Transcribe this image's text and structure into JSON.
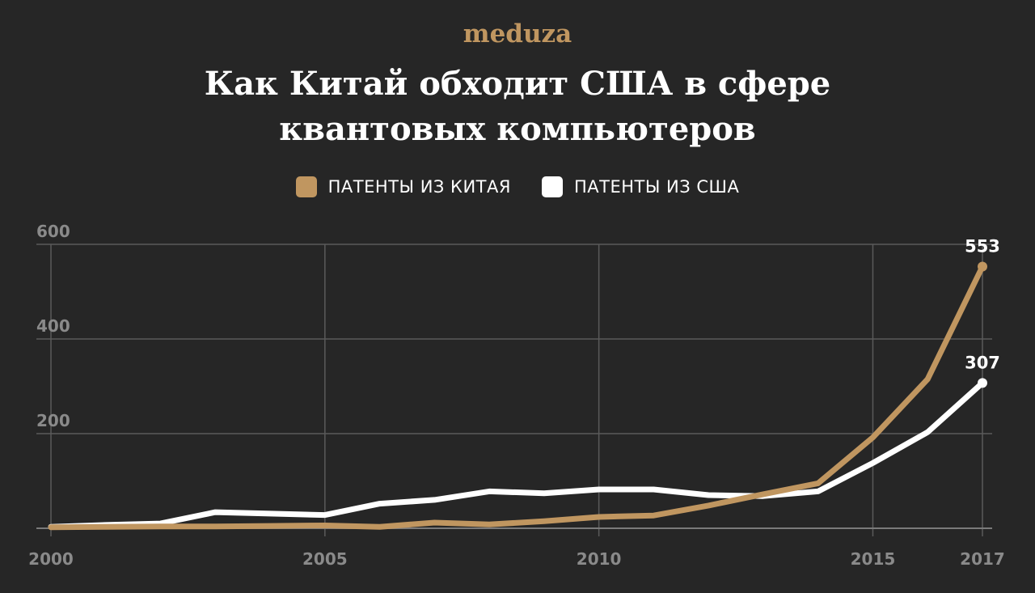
{
  "logo": "meduza",
  "title_lines": [
    "Как Китай обходит США в сфере",
    "квантовых компьютеров"
  ],
  "colors": {
    "background": "#262626",
    "china": "#c09660",
    "usa": "#ffffff",
    "grid": "#5a5a5a",
    "tick": "#8a8a8a"
  },
  "chart_data": {
    "type": "line",
    "title": "Как Китай обходит США в сфере квантовых компьютеров",
    "x": [
      2000,
      2001,
      2002,
      2003,
      2004,
      2005,
      2006,
      2007,
      2008,
      2009,
      2010,
      2011,
      2012,
      2013,
      2014,
      2015,
      2016,
      2017
    ],
    "series": [
      {
        "name": "ПАТЕНТЫ ИЗ КИТАЯ",
        "color": "#c09660",
        "values": [
          2,
          3,
          4,
          4,
          5,
          6,
          3,
          12,
          8,
          15,
          24,
          27,
          48,
          72,
          95,
          192,
          315,
          553
        ]
      },
      {
        "name": "ПАТЕНТЫ ИЗ США",
        "color": "#ffffff",
        "values": [
          3,
          7,
          10,
          34,
          31,
          28,
          52,
          60,
          78,
          74,
          82,
          82,
          70,
          68,
          78,
          138,
          203,
          307
        ]
      }
    ],
    "x_ticks": [
      "2000",
      "2005",
      "2010",
      "2015",
      "2017"
    ],
    "y_ticks": [
      "600",
      "400",
      "200"
    ],
    "ylim": [
      0,
      600
    ],
    "end_labels": [
      "553",
      "307"
    ],
    "grid": true,
    "legend_position": "top-center"
  }
}
